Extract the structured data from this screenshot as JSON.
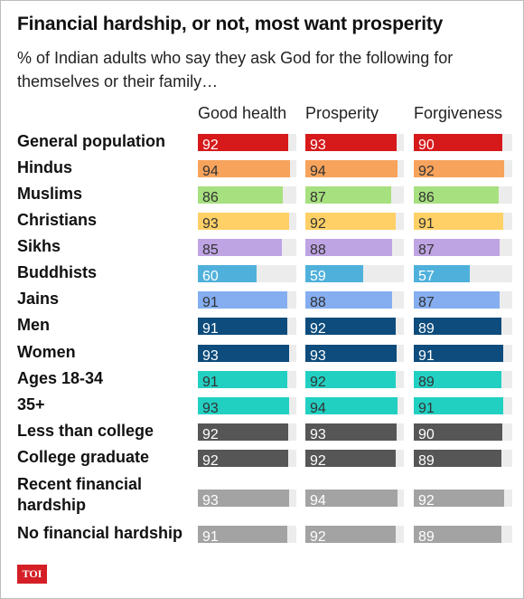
{
  "title": "Financial hardship, or not, most want prosperity",
  "subtitle": "% of Indian adults who say they ask God for the following for themselves or their family…",
  "logo_text": "TOI",
  "chart_data": {
    "type": "bar",
    "orientation": "horizontal",
    "xlim": [
      0,
      100
    ],
    "grid": false,
    "columns": [
      "Good health",
      "Prosperity",
      "Forgiveness"
    ],
    "rows": [
      {
        "label": "General population",
        "values": [
          92,
          93,
          90
        ],
        "color": "#d6191b"
      },
      {
        "label": "Hindus",
        "values": [
          94,
          94,
          92
        ],
        "color": "#f7a35c"
      },
      {
        "label": "Muslims",
        "values": [
          86,
          87,
          86
        ],
        "color": "#a6e07f"
      },
      {
        "label": "Christians",
        "values": [
          93,
          92,
          91
        ],
        "color": "#ffd066"
      },
      {
        "label": "Sikhs",
        "values": [
          85,
          88,
          87
        ],
        "color": "#bfa4e4"
      },
      {
        "label": "Buddhists",
        "values": [
          60,
          59,
          57
        ],
        "color": "#4fb1db"
      },
      {
        "label": "Jains",
        "values": [
          91,
          88,
          87
        ],
        "color": "#85aef0"
      },
      {
        "label": "Men",
        "values": [
          91,
          92,
          89
        ],
        "color": "#0d4c7c"
      },
      {
        "label": "Women",
        "values": [
          93,
          93,
          91
        ],
        "color": "#0d4c7c"
      },
      {
        "label": "Ages 18-34",
        "values": [
          91,
          92,
          89
        ],
        "color": "#22d0c2"
      },
      {
        "label": "35+",
        "values": [
          93,
          94,
          91
        ],
        "color": "#22d0c2"
      },
      {
        "label": "Less than college",
        "values": [
          92,
          93,
          90
        ],
        "color": "#565656"
      },
      {
        "label": "College graduate",
        "values": [
          92,
          92,
          89
        ],
        "color": "#565656"
      },
      {
        "label": "Recent financial hardship",
        "values": [
          93,
          94,
          92
        ],
        "color": "#a3a3a3"
      },
      {
        "label": "No financial hardship",
        "values": [
          91,
          92,
          89
        ],
        "color": "#a3a3a3"
      }
    ]
  }
}
